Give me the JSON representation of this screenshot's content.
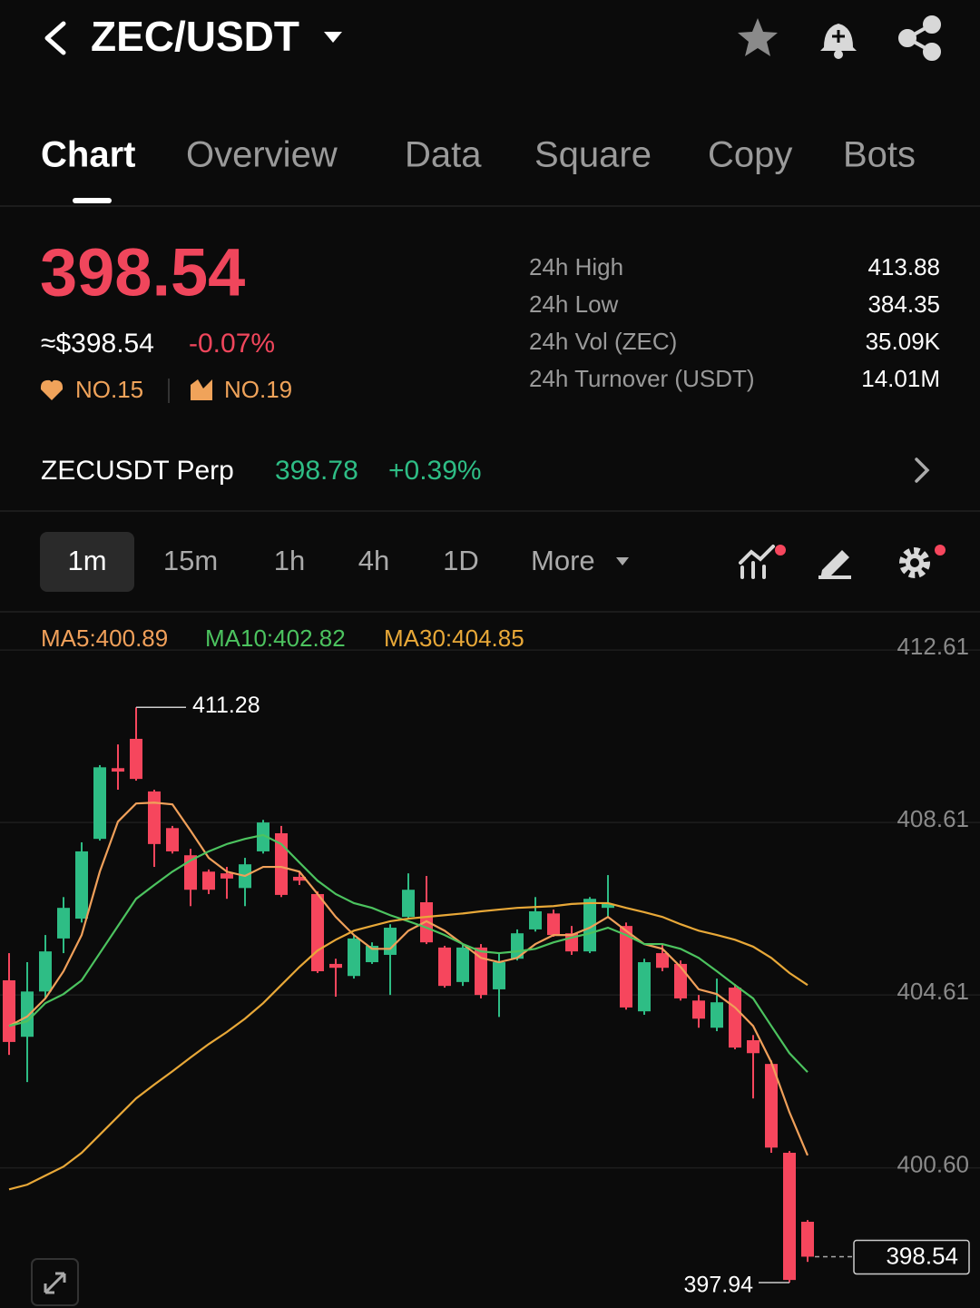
{
  "header": {
    "pair": "ZEC/USDT"
  },
  "tabs": [
    "Chart",
    "Overview",
    "Data",
    "Square",
    "Copy",
    "Bots"
  ],
  "ticker": {
    "price": "398.54",
    "usd_price": "≈$398.54",
    "change": "-0.07%",
    "rank_hot": "NO.15",
    "rank_gain": "NO.19"
  },
  "stats": [
    {
      "label": "24h High",
      "value": "413.88"
    },
    {
      "label": "24h Low",
      "value": "384.35"
    },
    {
      "label": "24h Vol (ZEC)",
      "value": "35.09K"
    },
    {
      "label": "24h Turnover (USDT)",
      "value": "14.01M"
    }
  ],
  "perp": {
    "name": "ZECUSDT Perp",
    "price": "398.78",
    "change": "+0.39%"
  },
  "intervals": [
    "1m",
    "15m",
    "1h",
    "4h",
    "1D",
    "More"
  ],
  "chart_data": {
    "type": "candlestick",
    "categories": [
      null,
      null,
      null,
      null,
      null,
      null,
      null,
      null,
      null,
      null,
      null,
      null,
      null,
      null,
      null,
      null,
      null,
      null,
      null,
      null,
      null,
      null,
      null,
      null,
      null,
      null,
      null,
      null,
      null,
      null,
      null,
      null,
      null,
      null,
      null,
      null,
      null,
      null,
      null,
      null,
      null,
      null,
      null,
      null,
      null
    ],
    "open": [
      404.95,
      403.64,
      404.69,
      405.92,
      406.38,
      408.23,
      409.87,
      410.55,
      409.33,
      408.48,
      407.85,
      407.47,
      407.43,
      407.09,
      407.94,
      408.36,
      407.35,
      406.95,
      405.33,
      405.05,
      405.37,
      405.54,
      406.42,
      406.76,
      405.71,
      404.91,
      405.71,
      404.74,
      405.45,
      406.13,
      406.5,
      406.04,
      405.62,
      406.63,
      406.21,
      404.23,
      405.58,
      405.33,
      404.48,
      403.85,
      404.78,
      403.56,
      403.01,
      400.95,
      399.35
    ],
    "high": [
      405.58,
      405.37,
      406.0,
      406.88,
      408.15,
      409.94,
      410.42,
      411.28,
      409.37,
      408.53,
      408.0,
      407.52,
      407.58,
      407.79,
      408.67,
      408.53,
      407.47,
      407.01,
      405.45,
      406.0,
      405.83,
      406.25,
      407.43,
      407.37,
      405.75,
      405.79,
      405.79,
      405.58,
      406.13,
      406.88,
      406.59,
      406.21,
      406.88,
      407.39,
      406.29,
      405.45,
      405.79,
      405.41,
      404.61,
      404.99,
      404.86,
      403.68,
      403.09,
      400.99,
      399.39
    ],
    "low": [
      403.22,
      402.59,
      404.53,
      405.58,
      406.29,
      408.19,
      409.37,
      409.58,
      407.58,
      407.89,
      406.67,
      406.95,
      406.84,
      406.67,
      407.89,
      406.88,
      407.16,
      405.12,
      404.57,
      404.99,
      405.33,
      404.61,
      406.38,
      405.79,
      404.78,
      404.82,
      404.53,
      404.1,
      405.41,
      406.08,
      405.96,
      405.54,
      405.58,
      406.42,
      404.27,
      404.15,
      405.16,
      404.48,
      403.85,
      403.77,
      403.35,
      402.21,
      400.95,
      397.94,
      398.42
    ],
    "close": [
      403.52,
      404.69,
      405.62,
      406.63,
      407.94,
      409.89,
      409.79,
      409.62,
      408.11,
      407.94,
      407.05,
      407.05,
      407.31,
      407.64,
      408.61,
      406.93,
      407.26,
      405.16,
      405.24,
      405.92,
      405.75,
      406.17,
      407.05,
      405.83,
      404.82,
      405.71,
      404.61,
      405.37,
      406.04,
      406.55,
      406.0,
      405.62,
      406.84,
      406.72,
      404.32,
      405.37,
      405.24,
      404.53,
      404.06,
      404.44,
      403.39,
      403.26,
      401.07,
      398.0,
      398.54
    ],
    "up_color": "#2ebd85",
    "down_color": "#f6465d",
    "series": [
      {
        "name": "MA5",
        "label": "MA5:400.89",
        "color": "#f0a05a",
        "values": [
          403.89,
          404.11,
          404.53,
          405.16,
          406.0,
          407.47,
          408.63,
          409.05,
          409.07,
          409.03,
          408.42,
          407.79,
          407.47,
          407.37,
          407.58,
          407.58,
          407.47,
          406.95,
          406.42,
          406.0,
          405.68,
          405.68,
          406.1,
          406.32,
          406.1,
          405.79,
          405.47,
          405.37,
          405.47,
          405.79,
          406.0,
          406.0,
          406.17,
          406.42,
          406.1,
          405.79,
          405.68,
          405.26,
          404.74,
          404.63,
          404.32,
          403.89,
          403.05,
          401.89,
          400.89
        ]
      },
      {
        "name": "MA10",
        "label": "MA10:402.82",
        "color": "#4cc35f",
        "values": [
          403.89,
          404.0,
          404.42,
          404.63,
          404.95,
          405.58,
          406.21,
          406.84,
          407.16,
          407.47,
          407.73,
          407.94,
          408.11,
          408.23,
          408.32,
          408.11,
          407.68,
          407.26,
          406.95,
          406.74,
          406.63,
          406.46,
          406.32,
          406.17,
          406.0,
          405.79,
          405.62,
          405.58,
          405.62,
          405.68,
          405.83,
          405.94,
          406.04,
          406.17,
          406.0,
          405.79,
          405.79,
          405.68,
          405.47,
          405.16,
          404.84,
          404.53,
          403.89,
          403.26,
          402.82
        ]
      },
      {
        "name": "MA30",
        "label": "MA30:404.85",
        "color": "#e8a838",
        "values": [
          400.1,
          400.21,
          400.42,
          400.63,
          400.95,
          401.37,
          401.79,
          402.21,
          402.53,
          402.84,
          403.16,
          403.47,
          403.75,
          404.06,
          404.42,
          404.84,
          405.26,
          405.64,
          405.89,
          406.1,
          406.21,
          406.32,
          406.38,
          406.42,
          406.46,
          406.5,
          406.55,
          406.59,
          406.63,
          406.65,
          406.67,
          406.72,
          406.74,
          406.74,
          406.63,
          406.53,
          406.42,
          406.25,
          406.1,
          406.0,
          405.89,
          405.73,
          405.47,
          405.12,
          404.84
        ]
      }
    ],
    "ylim": [
      397.35,
      413.37
    ],
    "yticks": [
      412.61,
      408.61,
      404.61,
      {
        "value": 400.6,
        "label": "400.60"
      }
    ],
    "grid": true
  }
}
